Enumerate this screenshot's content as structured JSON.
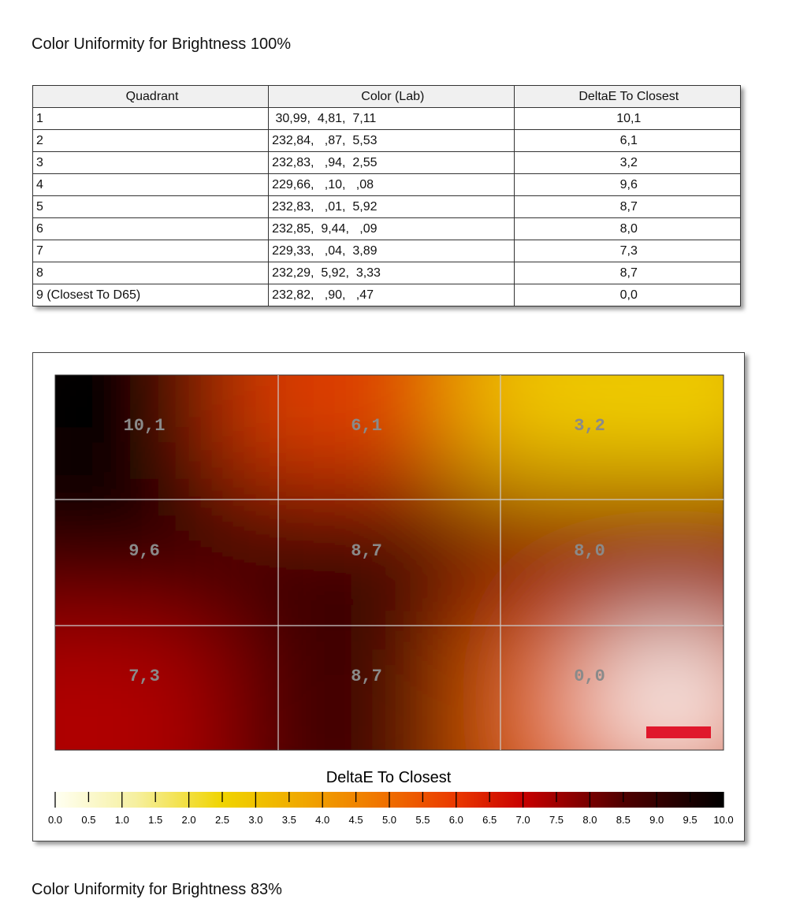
{
  "title": "Color Uniformity for Brightness 100%",
  "table": {
    "header": [
      "Quadrant",
      "Color (Lab)",
      "DeltaE To Closest"
    ],
    "rows": [
      [
        "1",
        " 30,99,  4,81,  7,11",
        "10,1"
      ],
      [
        "2",
        "232,84,   ,87,  5,53",
        "6,1"
      ],
      [
        "3",
        "232,83,   ,94,  2,55",
        "3,2"
      ],
      [
        "4",
        "229,66,   ,10,   ,08",
        "9,6"
      ],
      [
        "5",
        "232,83,   ,01,  5,92",
        "8,7"
      ],
      [
        "6",
        "232,85,  9,44,   ,09",
        "8,0"
      ],
      [
        "7",
        "229,33,   ,04,  3,89",
        "7,3"
      ],
      [
        "8",
        "232,29,  5,92,  3,33",
        "8,7"
      ],
      [
        "9 (Closest To D65)",
        "232,82,   ,90,   ,47",
        "0,0"
      ]
    ]
  },
  "heatmap": {
    "cells": [
      "10,1",
      "6,1",
      "3,2",
      "9,6",
      "8,7",
      "8,0",
      "7,3",
      "8,7",
      "0,0"
    ],
    "colorbar_title": "DeltaE To Closest",
    "colorbar_ticks": [
      "0.0",
      "0.5",
      "1.0",
      "1.5",
      "2.0",
      "2.5",
      "3.0",
      "3.5",
      "4.0",
      "4.5",
      "5.0",
      "5.5",
      "6.0",
      "6.5",
      "7.0",
      "7.5",
      "8.0",
      "8.5",
      "9.0",
      "9.5",
      "10.0"
    ]
  },
  "next_title": "Color Uniformity for Brightness 83%"
}
